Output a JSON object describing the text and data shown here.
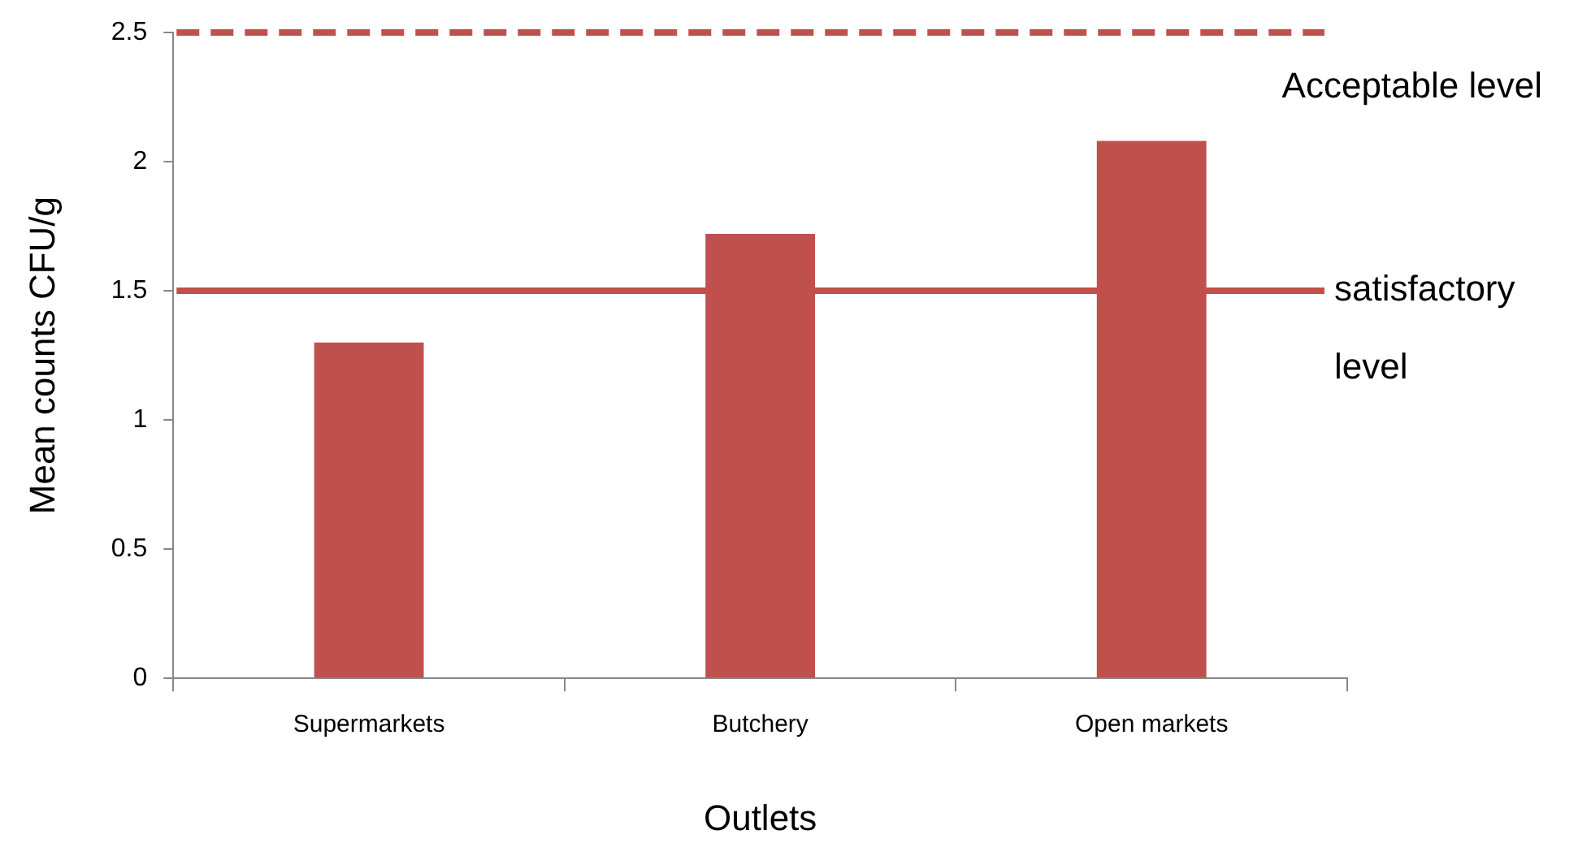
{
  "chart_data": {
    "type": "bar",
    "xlabel": "Outlets",
    "ylabel": "Mean counts CFU/g",
    "categories": [
      "Supermarkets",
      "Butchery",
      "Open markets"
    ],
    "values": [
      1.3,
      1.72,
      2.08
    ],
    "color": "#c0504d",
    "ylim": [
      0,
      2.5
    ],
    "yticks": [
      0,
      0.5,
      1,
      1.5,
      2,
      2.5
    ],
    "grid": false,
    "legend": false,
    "ref_lines": [
      {
        "axis": "y",
        "value": 2.5,
        "label": "Acceptable level",
        "color": "#c0504d",
        "line_style": "dashed"
      },
      {
        "axis": "y",
        "value": 1.5,
        "label": "satisfactory level",
        "color": "#c0504d",
        "line_style": "solid"
      }
    ]
  }
}
